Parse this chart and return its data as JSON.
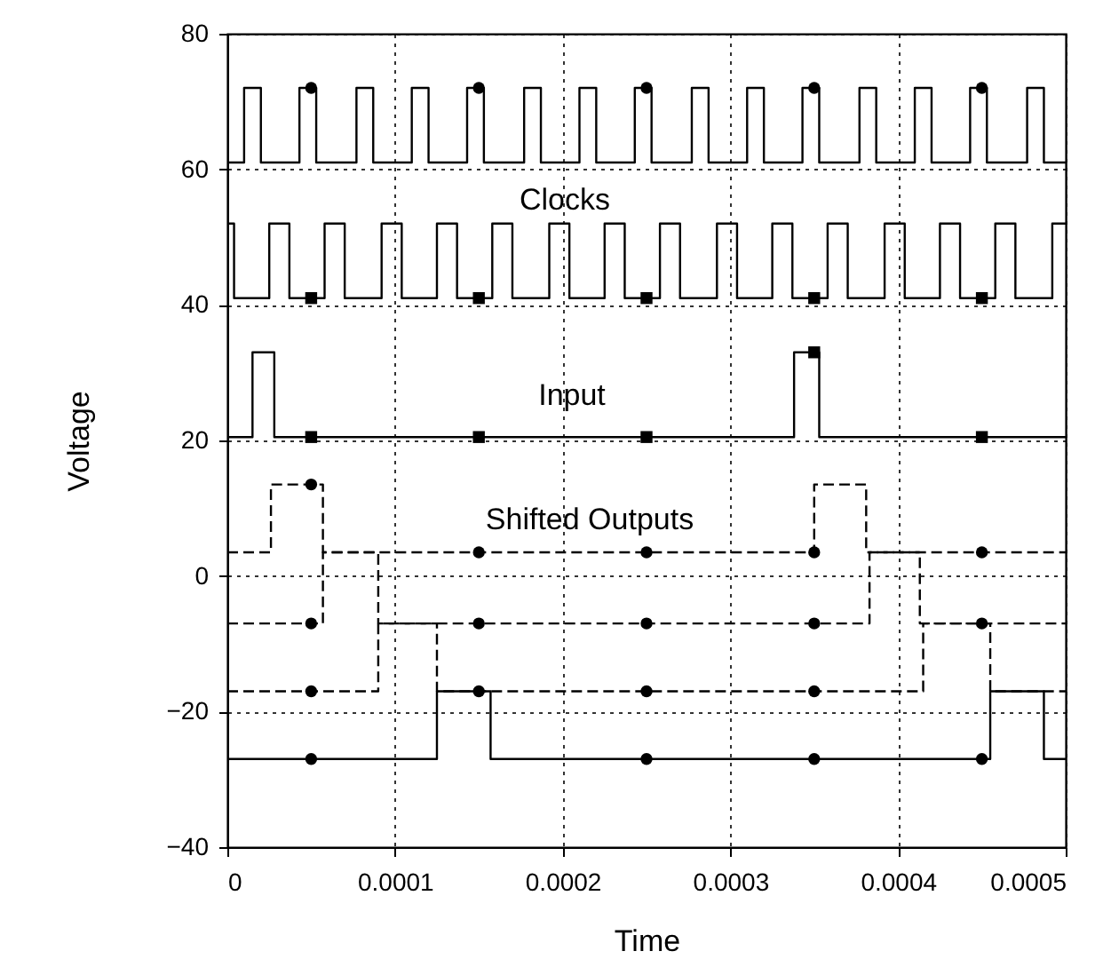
{
  "chart_data": {
    "type": "line",
    "xlabel": "Time",
    "ylabel": "Voltage",
    "xlim": [
      0,
      0.0005
    ],
    "xticks": [
      0,
      0.0001,
      0.0002,
      0.0003,
      0.0004,
      0.0005
    ],
    "ylim": [
      -40,
      80
    ],
    "yticks": [
      -40,
      -20,
      0,
      20,
      40,
      60,
      80
    ],
    "grid": true,
    "marker": "none",
    "annotations": [
      "Clocks",
      "Input",
      "Shifted Outputs"
    ],
    "series": [
      {
        "color": "#000000",
        "line_style": "solid",
        "x": [
          0,
          1e-05,
          1e-05,
          2e-05,
          2e-05,
          4.3e-05,
          4.3e-05,
          5.3e-05,
          5.3e-05,
          7.7e-05,
          7.7e-05,
          8.7e-05,
          8.7e-05,
          0.00011,
          0.00011,
          0.00012,
          0.00012,
          0.000143,
          0.000143,
          0.000153,
          0.000153,
          0.000177,
          0.000177,
          0.000187,
          0.000187,
          0.00021,
          0.00021,
          0.00022,
          0.00022,
          0.000243,
          0.000243,
          0.000253,
          0.000253,
          0.000277,
          0.000277,
          0.000287,
          0.000287,
          0.00031,
          0.00031,
          0.00032,
          0.00032,
          0.000343,
          0.000343,
          0.000353,
          0.000353,
          0.000377,
          0.000377,
          0.000387,
          0.000387,
          0.00041,
          0.00041,
          0.00042,
          0.00042,
          0.000443,
          0.000443,
          0.000453,
          0.000453,
          0.000477,
          0.000477,
          0.000487,
          0.000487,
          0.0005
        ],
        "values": [
          61,
          61,
          72,
          72,
          61,
          61,
          72,
          72,
          61,
          61,
          72,
          72,
          61,
          61,
          72,
          72,
          61,
          61,
          72,
          72,
          61,
          61,
          72,
          72,
          61,
          61,
          72,
          72,
          61,
          61,
          72,
          72,
          61,
          61,
          72,
          72,
          61,
          61,
          72,
          72,
          61,
          61,
          72,
          72,
          61,
          61,
          72,
          72,
          61,
          61,
          72,
          72,
          61,
          61,
          72,
          72,
          61,
          61,
          72,
          72,
          61,
          61
        ]
      },
      {
        "color": "#000000",
        "line_style": "solid",
        "x": [
          0,
          4e-06,
          4e-06,
          2.5e-05,
          2.5e-05,
          3.7e-05,
          3.7e-05,
          5.8e-05,
          5.8e-05,
          7e-05,
          7e-05,
          9.2e-05,
          9.2e-05,
          0.000104,
          0.000104,
          0.000125,
          0.000125,
          0.000137,
          0.000137,
          0.000158,
          0.000158,
          0.00017,
          0.00017,
          0.000192,
          0.000192,
          0.000204,
          0.000204,
          0.000225,
          0.000225,
          0.000237,
          0.000237,
          0.000258,
          0.000258,
          0.00027,
          0.00027,
          0.000292,
          0.000292,
          0.000304,
          0.000304,
          0.000325,
          0.000325,
          0.000337,
          0.000337,
          0.000358,
          0.000358,
          0.00037,
          0.00037,
          0.000392,
          0.000392,
          0.000404,
          0.000404,
          0.000425,
          0.000425,
          0.000437,
          0.000437,
          0.000458,
          0.000458,
          0.00047,
          0.00047,
          0.000492,
          0.000492,
          0.0005
        ],
        "values": [
          52,
          52,
          41,
          41,
          52,
          52,
          41,
          41,
          52,
          52,
          41,
          41,
          52,
          52,
          41,
          41,
          52,
          52,
          41,
          41,
          52,
          52,
          41,
          41,
          52,
          52,
          41,
          41,
          52,
          52,
          41,
          41,
          52,
          52,
          41,
          41,
          52,
          52,
          41,
          41,
          52,
          52,
          41,
          41,
          52,
          52,
          41,
          41,
          52,
          52,
          41,
          41,
          52,
          52,
          41,
          41,
          52,
          52,
          41,
          41,
          52,
          52
        ]
      },
      {
        "color": "#000000",
        "line_style": "solid",
        "x": [
          0,
          1.5e-05,
          1.5e-05,
          2.8e-05,
          2.8e-05,
          0.000338,
          0.000338,
          0.000353,
          0.000353,
          0.0005
        ],
        "values": [
          20.5,
          20.5,
          33,
          33,
          20.5,
          20.5,
          33,
          33,
          20.5,
          20.5
        ]
      },
      {
        "color": "#000000",
        "line_style": "dashed",
        "x": [
          0,
          2.6e-05,
          2.6e-05,
          5.7e-05,
          5.7e-05,
          0.00035,
          0.00035,
          0.000381,
          0.000381,
          0.0005
        ],
        "values": [
          3.5,
          3.5,
          13.5,
          13.5,
          3.5,
          3.5,
          13.5,
          13.5,
          3.5,
          3.5
        ]
      },
      {
        "color": "#000000",
        "line_style": "dashed",
        "x": [
          0,
          5.7e-05,
          5.7e-05,
          9e-05,
          9e-05,
          0.000383,
          0.000383,
          0.000413,
          0.000413,
          0.0005
        ],
        "values": [
          -7,
          -7,
          3.5,
          3.5,
          -7,
          -7,
          3.5,
          3.5,
          -7,
          -7
        ]
      },
      {
        "color": "#000000",
        "line_style": "dashed",
        "x": [
          0,
          9e-05,
          9e-05,
          0.000125,
          0.000125,
          0.000415,
          0.000415,
          0.000455,
          0.000455,
          0.0005
        ],
        "values": [
          -17,
          -17,
          -7,
          -7,
          -17,
          -17,
          -7,
          -7,
          -17,
          -17
        ]
      },
      {
        "color": "#000000",
        "line_style": "solid",
        "x": [
          0,
          0.000125,
          0.000125,
          0.000157,
          0.000157,
          0.000455,
          0.000455,
          0.000487,
          0.000487,
          0.0005
        ],
        "values": [
          -27,
          -27,
          -17,
          -17,
          -27,
          -27,
          -17,
          -17,
          -27,
          -27
        ]
      },
      {
        "type": "scatter",
        "color": "#000000",
        "marker": "circle",
        "x": [
          5e-05,
          0.00015,
          0.00025,
          0.00035,
          0.00045
        ],
        "values": [
          72,
          72,
          72,
          72,
          72
        ]
      },
      {
        "type": "scatter",
        "color": "#000000",
        "marker": "square",
        "x": [
          5e-05,
          0.00015,
          0.00025,
          0.00035,
          0.00045
        ],
        "values": [
          41,
          41,
          41,
          41,
          41
        ]
      },
      {
        "type": "scatter",
        "color": "#000000",
        "marker": "square",
        "x": [
          5e-05,
          0.00015,
          0.00025,
          0.00035,
          0.00045
        ],
        "values": [
          20.5,
          20.5,
          20.5,
          33,
          20.5
        ]
      },
      {
        "type": "scatter",
        "color": "#000000",
        "marker": "circle",
        "x": [
          5e-05,
          0.00015,
          0.00025,
          0.00035,
          0.00045,
          5e-05,
          0.00015,
          0.00025,
          0.00035,
          0.00045,
          5e-05,
          0.00015,
          0.00025,
          0.00035,
          5e-05,
          0.00025,
          0.00035,
          0.00045
        ],
        "values": [
          13.5,
          3.5,
          3.5,
          3.5,
          3.5,
          -7,
          -7,
          -7,
          -7,
          -7,
          -17,
          -17,
          -17,
          -17,
          -27,
          -27,
          -27,
          -27
        ]
      }
    ]
  }
}
